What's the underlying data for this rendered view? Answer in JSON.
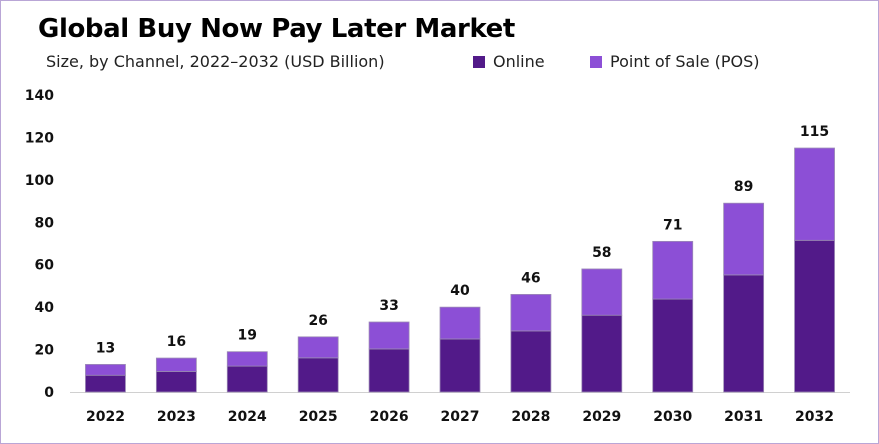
{
  "colors": {
    "online": "#521a89",
    "pos": "#8c4fd6",
    "frame": "#b9a6d6"
  },
  "legend": {
    "online": "Online",
    "pos": "Point of Sale (POS)"
  },
  "chart_data": {
    "type": "bar",
    "stacked": true,
    "title": "Global Buy Now Pay Later Market",
    "subtitle": "Size, by Channel, 2022–2032 (USD Billion)",
    "xlabel": "",
    "ylabel": "",
    "ylim": [
      0,
      140
    ],
    "yticks": [
      0,
      20,
      40,
      60,
      80,
      100,
      120,
      140
    ],
    "grid": false,
    "legend_position": "top-right",
    "categories": [
      "2022",
      "2023",
      "2024",
      "2025",
      "2026",
      "2027",
      "2028",
      "2029",
      "2030",
      "2031",
      "2032"
    ],
    "series": [
      {
        "name": "Online",
        "color": "#521a89",
        "values": [
          7.9,
          9.7,
          12.2,
          16.1,
          20.3,
          25,
          28.8,
          36.2,
          43.8,
          55.2,
          71.5
        ]
      },
      {
        "name": "Point of Sale (POS)",
        "color": "#8c4fd6",
        "values": [
          5.1,
          6.3,
          6.8,
          9.9,
          12.7,
          15,
          17.2,
          21.8,
          27.2,
          33.8,
          43.5
        ]
      }
    ],
    "totals": [
      "13",
      "16",
      "19",
      "26",
      "33",
      "40",
      "46",
      "58",
      "71",
      "89",
      "115"
    ]
  }
}
